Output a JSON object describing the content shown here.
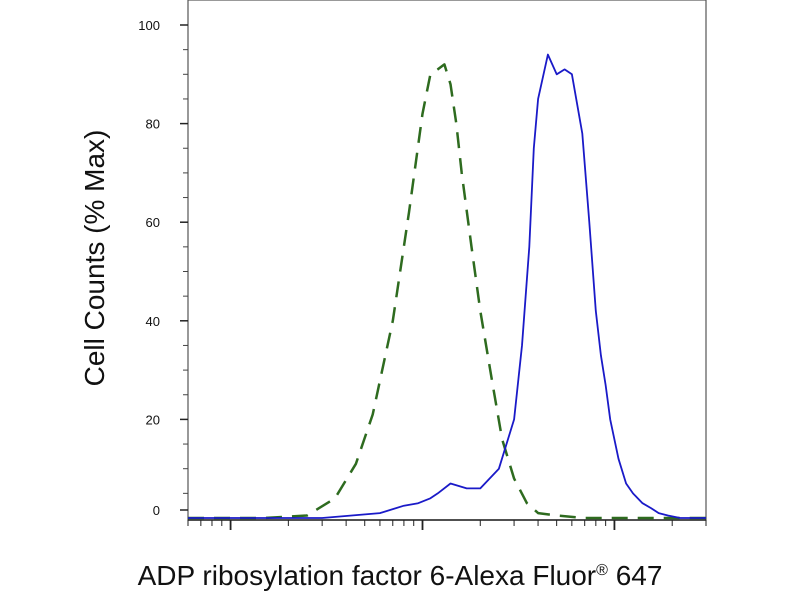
{
  "chart_data": {
    "type": "line",
    "title": "",
    "xlabel_main": "ADP ribosylation factor 6-Alexa Fluor",
    "xlabel_mark": "®",
    "xlabel_tail": " 647",
    "ylabel": "Cell Counts (% Max)",
    "ylim": [
      0,
      100
    ],
    "x_scale": "log",
    "xlim": [
      0.6,
      300
    ],
    "y_ticks": [
      "0",
      "20",
      "40",
      "60",
      "80",
      "100"
    ],
    "grid": false,
    "series": [
      {
        "style": "dashed",
        "color": "#2e6b1f",
        "x": [
          0.6,
          1.5,
          2.5,
          3.5,
          4.5,
          5.5,
          7,
          8.5,
          10,
          11,
          12,
          13,
          14,
          15,
          16,
          18,
          20,
          23,
          26,
          30,
          35,
          40,
          50,
          70,
          100,
          150,
          200,
          300
        ],
        "y": [
          0,
          0,
          0.5,
          4,
          11,
          21,
          40,
          62,
          82,
          90,
          91,
          92,
          88,
          80,
          70,
          55,
          42,
          28,
          16,
          8,
          3,
          1,
          0.5,
          0,
          0,
          0,
          0,
          0
        ]
      },
      {
        "style": "solid",
        "color": "#1a1ac8",
        "x": [
          0.6,
          3,
          6,
          8,
          9.5,
          11,
          12,
          14,
          17,
          20,
          25,
          30,
          33,
          36,
          38,
          40,
          45,
          50,
          55,
          60,
          68,
          74,
          80,
          85,
          90,
          95,
          105,
          115,
          125,
          140,
          155,
          170,
          190,
          220,
          260,
          300
        ],
        "y": [
          0,
          0,
          1,
          2.5,
          3,
          4,
          5,
          7,
          6,
          6,
          10,
          20,
          35,
          55,
          75,
          85,
          94,
          90,
          91,
          90,
          78,
          60,
          42,
          33,
          27,
          20,
          12,
          7,
          5,
          3,
          2,
          1,
          0.5,
          0,
          0,
          0
        ]
      }
    ]
  }
}
